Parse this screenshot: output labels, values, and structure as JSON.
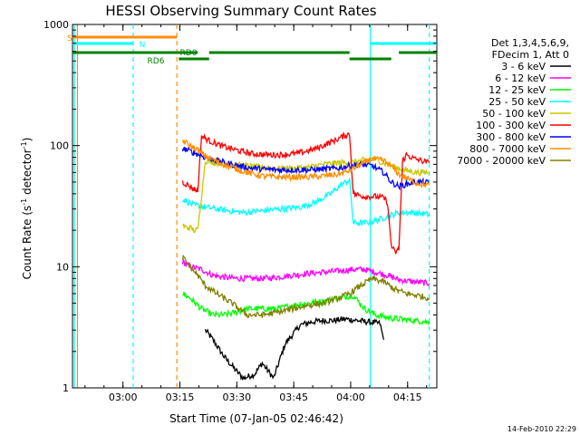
{
  "chart_data": {
    "type": "line",
    "title": "HESSI Observing Summary Count Rates",
    "xlabel": "Start Time (07-Jan-05 02:46:42)",
    "ylabel_main": "Count Rate (s",
    "ylabel_sup1": "-1",
    "ylabel_mid": " detector",
    "ylabel_sup2": "-1",
    "ylabel_end": ")",
    "xlim_minutes": [
      0,
      96
    ],
    "ylim": [
      1,
      1000
    ],
    "yscale": "log",
    "x_ticks": [
      {
        "minute": 13.3,
        "label": "03:00"
      },
      {
        "minute": 28.3,
        "label": "03:15"
      },
      {
        "minute": 43.3,
        "label": "03:30"
      },
      {
        "minute": 58.3,
        "label": "03:45"
      },
      {
        "minute": 73.3,
        "label": "04:00"
      },
      {
        "minute": 88.3,
        "label": "04:15"
      }
    ],
    "y_ticks": [
      {
        "value": 1,
        "label": "1"
      },
      {
        "value": 10,
        "label": "10"
      },
      {
        "value": 100,
        "label": "100"
      },
      {
        "value": 1000,
        "label": "1000"
      }
    ],
    "legend_header": [
      "Det 1,3,4,5,6,9,",
      "FDecim 1, Att 0"
    ],
    "series": [
      {
        "name": "3 - 6 keV",
        "color": "#000000",
        "x": [
          35,
          37,
          40,
          43,
          45,
          48,
          50,
          53,
          56,
          60,
          63,
          66,
          69,
          72,
          75,
          78,
          81,
          82
        ],
        "y": [
          3.0,
          2.5,
          1.8,
          1.4,
          1.2,
          1.3,
          1.6,
          1.2,
          2.3,
          3.3,
          3.5,
          3.6,
          3.6,
          3.7,
          3.6,
          3.5,
          3.4,
          2.5
        ]
      },
      {
        "name": "6 - 12 keV",
        "color": "#ff00ff",
        "x": [
          29,
          31,
          34,
          37,
          40,
          43,
          46,
          50,
          54,
          58,
          62,
          66,
          70,
          74,
          77,
          80,
          83,
          86,
          90,
          94
        ],
        "y": [
          11,
          10,
          9.5,
          8.5,
          8.2,
          8.0,
          8.0,
          8.0,
          8.2,
          8.5,
          8.8,
          9.0,
          9.2,
          9.5,
          9.5,
          9.0,
          8.5,
          7.8,
          7.5,
          7.3
        ]
      },
      {
        "name": "12 - 25 keV",
        "color": "#00ff00",
        "x": [
          29,
          31,
          34,
          37,
          40,
          43,
          46,
          50,
          54,
          58,
          62,
          66,
          70,
          74,
          77,
          80,
          83,
          86,
          90,
          94
        ],
        "y": [
          6.0,
          5.5,
          4.5,
          4.0,
          4.0,
          4.2,
          4.5,
          4.5,
          4.5,
          4.8,
          5.0,
          5.2,
          5.5,
          5.8,
          4.5,
          4.0,
          3.8,
          3.7,
          3.6,
          3.5
        ]
      },
      {
        "name": "25 - 50 keV",
        "color": "#00ffff",
        "x": [
          29,
          30,
          32,
          33,
          35,
          38,
          41,
          45,
          50,
          55,
          60,
          64,
          68,
          71,
          73,
          74,
          77,
          80,
          83,
          86,
          90,
          94
        ],
        "y": [
          36,
          35,
          32,
          32,
          31,
          30,
          29,
          28,
          29,
          30,
          31,
          34,
          40,
          48,
          52,
          23,
          23,
          24,
          26,
          28,
          28,
          27
        ]
      },
      {
        "name": "50 - 100 keV",
        "color": "#c8c800",
        "x": [
          29,
          30,
          31,
          32,
          33,
          35,
          38,
          42,
          46,
          50,
          54,
          58,
          62,
          66,
          70,
          73,
          74,
          76,
          79,
          82,
          85,
          88,
          91,
          94
        ],
        "y": [
          22,
          21,
          21,
          20,
          20,
          75,
          72,
          70,
          68,
          66,
          65,
          65,
          66,
          70,
          72,
          73,
          73,
          75,
          78,
          72,
          66,
          62,
          60,
          60
        ]
      },
      {
        "name": "100 - 300 keV",
        "color": "#ff0000",
        "x": [
          29,
          30,
          31,
          32,
          33,
          34,
          36,
          39,
          43,
          47,
          51,
          55,
          59,
          63,
          66,
          69,
          72,
          73,
          74,
          77,
          80,
          82,
          83,
          84,
          85,
          86,
          87,
          88,
          90,
          94
        ],
        "y": [
          50,
          48,
          46,
          44,
          42,
          120,
          110,
          100,
          92,
          86,
          84,
          84,
          86,
          92,
          100,
          110,
          122,
          125,
          40,
          38,
          38,
          37,
          34,
          15,
          13,
          14,
          75,
          84,
          78,
          72
        ]
      },
      {
        "name": "300 - 800 keV",
        "color": "#0000ff",
        "x": [
          29,
          31,
          33,
          35,
          38,
          42,
          46,
          50,
          54,
          58,
          62,
          66,
          70,
          73,
          76,
          79,
          82,
          84,
          86,
          88,
          90,
          92,
          94
        ],
        "y": [
          95,
          90,
          85,
          80,
          75,
          70,
          66,
          64,
          63,
          63,
          63,
          64,
          65,
          68,
          70,
          68,
          60,
          50,
          46,
          48,
          50,
          50,
          49
        ]
      },
      {
        "name": "800 - 7000 keV",
        "color": "#ff8c00",
        "x": [
          29,
          31,
          33,
          35,
          38,
          42,
          46,
          50,
          54,
          58,
          62,
          66,
          70,
          73,
          76,
          79,
          82,
          84,
          86,
          88,
          90,
          92,
          94
        ],
        "y": [
          110,
          100,
          92,
          82,
          74,
          66,
          60,
          56,
          55,
          55,
          55,
          56,
          58,
          62,
          70,
          78,
          75,
          68,
          58,
          54,
          50,
          48,
          47
        ]
      },
      {
        "name": "7000 - 20000 keV",
        "color": "#808000",
        "x": [
          29,
          31,
          33,
          35,
          38,
          42,
          46,
          50,
          54,
          58,
          62,
          66,
          70,
          73,
          76,
          79,
          82,
          85,
          88,
          91,
          94
        ],
        "y": [
          12,
          10,
          8.5,
          7.0,
          6.0,
          5.0,
          4.0,
          4.0,
          4.2,
          4.5,
          4.8,
          5.0,
          5.5,
          6.0,
          7.0,
          8.0,
          7.5,
          6.5,
          6.0,
          5.8,
          5.5
        ]
      }
    ],
    "flag_bars": [
      {
        "label": "S",
        "color": "#ff8c00",
        "segments": [
          [
            0,
            27.5
          ]
        ]
      },
      {
        "label": "N",
        "color": "#00ffff",
        "segments": [
          [
            0,
            16
          ],
          [
            78.5,
            96
          ]
        ]
      },
      {
        "label": "RD0",
        "color": "#008000",
        "segments": [
          [
            0,
            33
          ],
          [
            36,
            73
          ],
          [
            86,
            96
          ]
        ]
      },
      {
        "label": "RD6",
        "color": "#008000",
        "segments": [
          [
            28,
            36
          ],
          [
            73,
            84
          ]
        ]
      }
    ],
    "vertical_markers": [
      {
        "minute": 0.5,
        "color": "#00ffff",
        "style": "solid"
      },
      {
        "minute": 1.3,
        "color": "#ff8c00",
        "style": "solid"
      },
      {
        "minute": 16.0,
        "color": "#00ffff",
        "style": "dashed"
      },
      {
        "minute": 27.5,
        "color": "#ff8c00",
        "style": "dashed"
      },
      {
        "minute": 78.5,
        "color": "#00ffff",
        "style": "solid"
      },
      {
        "minute": 94.0,
        "color": "#00ffff",
        "style": "dashed"
      }
    ]
  },
  "footer": {
    "timestamp": "14-Feb-2010 22:29"
  }
}
